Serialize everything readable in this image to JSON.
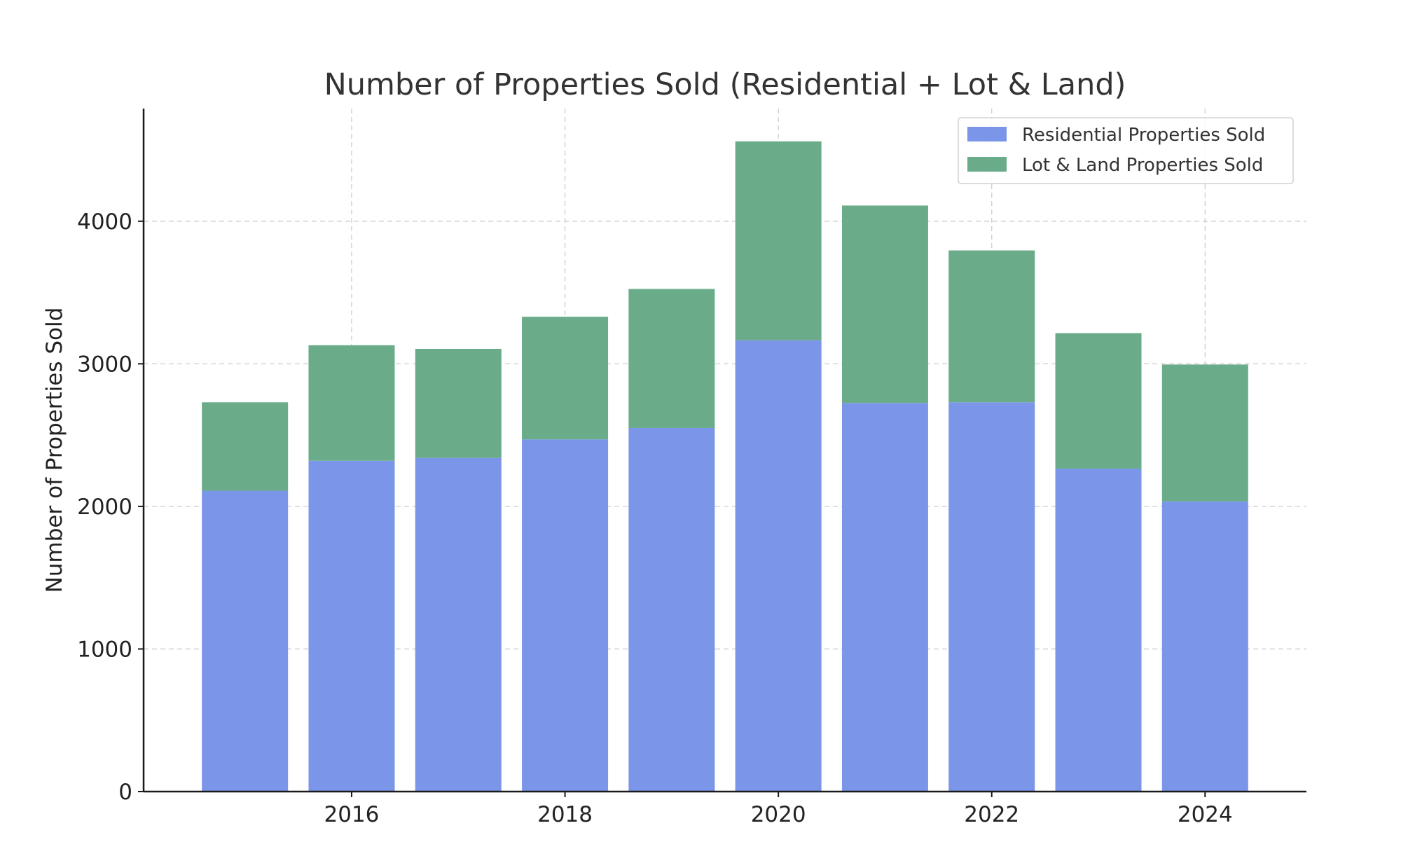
{
  "chart_data": {
    "type": "bar",
    "stacked": true,
    "title": "Number of Properties Sold (Residential + Lot & Land)",
    "xlabel": "",
    "ylabel": "Number of Properties Sold",
    "x": [
      2015,
      2016,
      2017,
      2018,
      2019,
      2020,
      2021,
      2022,
      2023,
      2024
    ],
    "x_ticks": [
      2016,
      2018,
      2020,
      2022,
      2024
    ],
    "y_ticks": [
      0,
      1000,
      2000,
      3000,
      4000
    ],
    "xlim": [
      2014.05,
      2024.95
    ],
    "ylim": [
      0,
      4790
    ],
    "grid": true,
    "legend_position": "top-right",
    "series": [
      {
        "name": "Residential Properties Sold",
        "color": "#7b95e8",
        "values": [
          2110,
          2320,
          2340,
          2470,
          2550,
          3165,
          2725,
          2730,
          2265,
          2035
        ]
      },
      {
        "name": "Lot & Land Properties Sold",
        "color": "#6aac89",
        "values": [
          620,
          810,
          765,
          860,
          975,
          1395,
          1385,
          1065,
          950,
          960
        ]
      }
    ]
  }
}
